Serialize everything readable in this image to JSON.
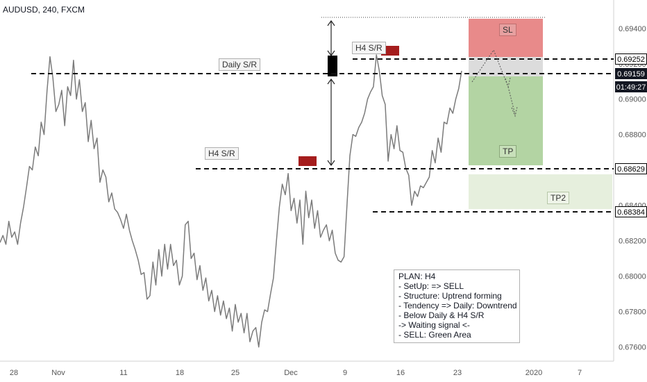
{
  "header": {
    "symbol_line": "AUDUSD, 240, FXCM"
  },
  "chart_data": {
    "type": "line",
    "title": "AUDUSD, 240, FXCM",
    "x_tick_labels": [
      "28",
      "Nov",
      "11",
      "18",
      "25",
      "Dec",
      "9",
      "16",
      "23",
      "2020",
      "7"
    ],
    "y_ticks": [
      0.676,
      0.678,
      0.68,
      0.682,
      0.684,
      0.686,
      0.688,
      0.69,
      0.692,
      0.694
    ],
    "ylim": [
      0.6752,
      0.6956
    ],
    "price_labels": {
      "level_1": "0.69252",
      "current": "0.69159",
      "countdown": "01:49:27",
      "level_2": "0.68629",
      "level_3": "0.68384"
    },
    "annotations": {
      "daily_sr": "Daily S/R",
      "h4_sr_upper": "H4 S/R",
      "h4_sr_lower": "H4 S/R",
      "sl": "SL",
      "tp": "TP",
      "tp2": "TP2"
    },
    "levels": {
      "daily_sr": 0.6916,
      "h4_upper": 0.69252,
      "h4_lower": 0.68629,
      "tp2": 0.68384
    },
    "series": [
      {
        "values": [
          0.6819,
          0.6823,
          0.6818,
          0.6831,
          0.6822,
          0.6825,
          0.6818,
          0.683,
          0.6839,
          0.685,
          0.6862,
          0.686,
          0.6873,
          0.6868,
          0.6887,
          0.688,
          0.6905,
          0.6924,
          0.6912,
          0.6893,
          0.6897,
          0.6905,
          0.6885,
          0.6907,
          0.6902,
          0.6922,
          0.69,
          0.6911,
          0.6893,
          0.6898,
          0.6876,
          0.6888,
          0.6872,
          0.6878,
          0.6853,
          0.686,
          0.6856,
          0.6842,
          0.6847,
          0.6838,
          0.6836,
          0.6832,
          0.6827,
          0.6835,
          0.6826,
          0.682,
          0.6815,
          0.6809,
          0.6801,
          0.6802,
          0.6787,
          0.6789,
          0.6808,
          0.6795,
          0.6815,
          0.68,
          0.6818,
          0.6804,
          0.6818,
          0.6806,
          0.6809,
          0.6795,
          0.68,
          0.6829,
          0.6831,
          0.681,
          0.6813,
          0.6798,
          0.6806,
          0.6792,
          0.6799,
          0.6786,
          0.6792,
          0.678,
          0.6789,
          0.6778,
          0.6786,
          0.6776,
          0.6782,
          0.6769,
          0.6784,
          0.6774,
          0.6779,
          0.6768,
          0.6779,
          0.6763,
          0.6769,
          0.6771,
          0.676,
          0.6774,
          0.6781,
          0.678,
          0.679,
          0.6799,
          0.682,
          0.6839,
          0.6852,
          0.6846,
          0.6858,
          0.6837,
          0.6844,
          0.683,
          0.6843,
          0.6818,
          0.6848,
          0.6833,
          0.6843,
          0.6827,
          0.6837,
          0.6822,
          0.6826,
          0.6829,
          0.682,
          0.6826,
          0.6813,
          0.6809,
          0.6808,
          0.6811,
          0.684,
          0.6868,
          0.688,
          0.6879,
          0.6884,
          0.6887,
          0.6892,
          0.69,
          0.6904,
          0.6907,
          0.6925,
          0.6916,
          0.6902,
          0.6897,
          0.6865,
          0.688,
          0.6872,
          0.6885,
          0.6871,
          0.687,
          0.6861,
          0.6857,
          0.684,
          0.6848,
          0.6845,
          0.6851,
          0.685,
          0.6853,
          0.6856,
          0.6871,
          0.6864,
          0.6878,
          0.687,
          0.6887,
          0.6886,
          0.6895,
          0.6892,
          0.69,
          0.6906,
          0.6916
        ]
      }
    ]
  }
}
